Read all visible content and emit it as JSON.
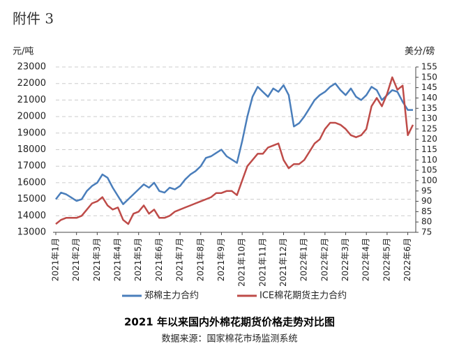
{
  "header": {
    "title": "附件 3"
  },
  "chart_data": {
    "type": "line",
    "title": "2021 年以来国内外棉花期货价格走势对比图",
    "subtitle": "数据来源：国家棉花市场监测系统",
    "ylabel": "元/吨",
    "y2label": "美分/磅",
    "categories": [
      "2021年1月",
      null,
      null,
      null,
      "2021年2月",
      null,
      null,
      null,
      "2021年3月",
      null,
      null,
      null,
      "2021年4月",
      null,
      null,
      null,
      "2021年5月",
      null,
      null,
      null,
      "2021年6月",
      null,
      null,
      null,
      "2021年7月",
      null,
      null,
      null,
      "2021年8月",
      null,
      null,
      null,
      "2021年9月",
      null,
      null,
      null,
      "2021年10月",
      null,
      null,
      null,
      "2021年11月",
      null,
      null,
      null,
      "2021年12月",
      null,
      null,
      null,
      "2022年1月",
      null,
      null,
      null,
      "2022年2月",
      null,
      null,
      null,
      "2022年3月",
      null,
      null,
      null,
      "2022年4月",
      null,
      null,
      null,
      "2022年5月",
      null,
      null,
      null,
      "2022年6月",
      null
    ],
    "ylim": [
      13000,
      23000
    ],
    "yticks": [
      13000,
      14000,
      15000,
      16000,
      17000,
      18000,
      19000,
      20000,
      21000,
      22000,
      23000
    ],
    "y2lim": [
      75,
      155
    ],
    "y2ticks": [
      75,
      80,
      85,
      90,
      95,
      100,
      105,
      110,
      115,
      120,
      125,
      130,
      135,
      140,
      145,
      150,
      155
    ],
    "grid": true,
    "series": [
      {
        "name": "郑棉主力合约",
        "color": "#4a7ebb",
        "values": [
          15000,
          15400,
          15300,
          15100,
          14900,
          15000,
          15500,
          15800,
          16000,
          16500,
          16300,
          15700,
          15200,
          14700,
          15000,
          15300,
          15600,
          15900,
          15700,
          16000,
          15500,
          15400,
          15700,
          15600,
          15800,
          16200,
          16500,
          16700,
          17000,
          17500,
          17600,
          17800,
          18000,
          17600,
          17400,
          17200,
          18500,
          20000,
          21200,
          21800,
          21500,
          21200,
          21700,
          21500,
          21900,
          21300,
          19400,
          19600,
          20000,
          20500,
          21000,
          21300,
          21500,
          21800,
          22000,
          21600,
          21300,
          21700,
          21200,
          21000,
          21300,
          21800,
          21600,
          21000,
          21300,
          21600,
          21500,
          20900,
          20400,
          20400
        ]
      },
      {
        "name": "ICE棉花期货主力合约",
        "color": "#be4b48",
        "axis": "y2",
        "values": [
          79,
          81,
          82,
          82,
          82,
          83,
          86,
          89,
          90,
          92,
          88,
          86,
          87,
          81,
          79,
          84,
          85,
          88,
          84,
          86,
          82,
          82,
          83,
          85,
          86,
          87,
          88,
          89,
          90,
          91,
          92,
          94,
          94,
          95,
          95,
          93,
          100,
          107,
          110,
          113,
          113,
          116,
          117,
          118,
          110,
          106,
          108,
          108,
          110,
          114,
          118,
          120,
          125,
          128,
          128,
          127,
          125,
          122,
          121,
          122,
          125,
          136,
          140,
          136,
          142,
          150,
          144,
          146,
          122,
          127
        ]
      }
    ]
  }
}
